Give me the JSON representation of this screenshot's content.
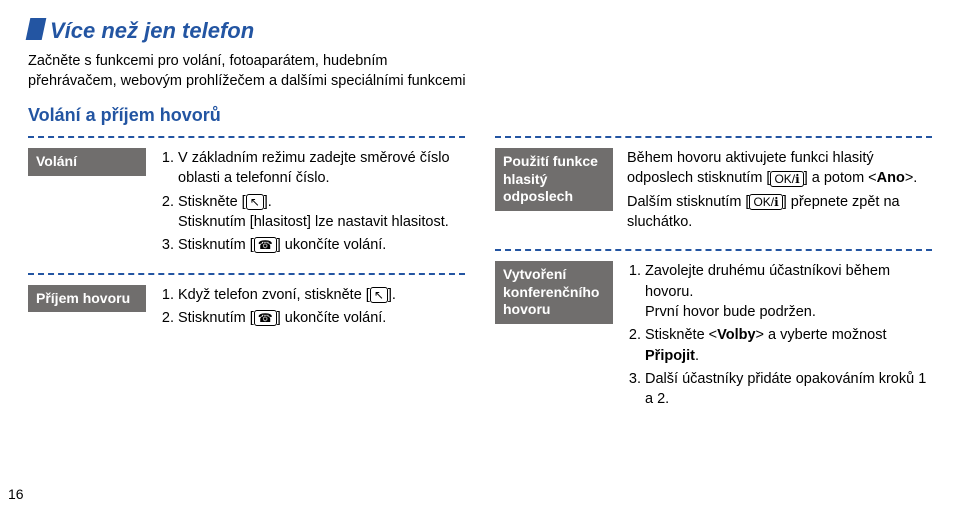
{
  "title": "Více než jen telefon",
  "intro": "Začněte s funkcemi pro volání, fotoaparátem, hudebním přehrávačem, webovým prohlížečem a dalšími speciálními funkcemi",
  "section_title": "Volání a příjem hovorů",
  "page_number": "16",
  "blocks": {
    "volani": {
      "label": "Volání",
      "item1a": "V základním režimu zadejte směrové číslo oblasti a telefonní číslo.",
      "item2a": "Stiskněte [",
      "item2b": "].",
      "item2c": "Stisknutím [hlasitost] lze nastavit hlasitost.",
      "item3a": "Stisknutím [",
      "item3b": "] ukončíte volání."
    },
    "prijem": {
      "label": "Příjem hovoru",
      "item1a": "Když telefon zvoní, stiskněte [",
      "item1b": "].",
      "item2a": "Stisknutím [",
      "item2b": "] ukončíte volání."
    },
    "odposlech": {
      "label": "Použití funkce hlasitý odposlech",
      "p1a": "Během hovoru aktivujete funkci hlasitý odposlech stisknutím [",
      "p1b": "] a potom <",
      "p1c": "Ano",
      "p1d": ">.",
      "p2a": "Dalším stisknutím [",
      "p2b": "] přepnete zpět na sluchátko."
    },
    "konference": {
      "label": "Vytvoření konferenčního hovoru",
      "item1a": "Zavolejte druhému účastníkovi během hovoru.",
      "item1b": "První hovor bude podržen.",
      "item2a": "Stiskněte <",
      "item2b": "Volby",
      "item2c": "> a vyberte možnost ",
      "item2d": "Připojit",
      "item2e": ".",
      "item3": "Další účastníky přidáte opakováním kroků 1 a 2."
    }
  },
  "icons": {
    "call": "↖",
    "end": "☎",
    "ok": "OK/ℹ"
  }
}
